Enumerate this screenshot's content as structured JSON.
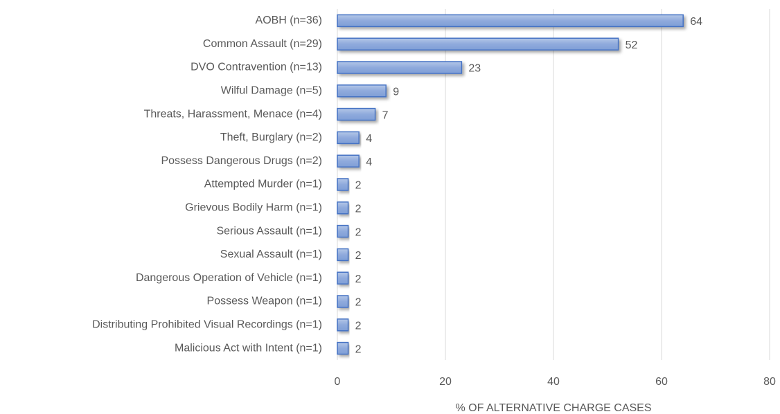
{
  "chart_data": {
    "type": "bar",
    "orientation": "horizontal",
    "x_label": "% OF ALTERNATIVE CHARGE CASES",
    "categories": [
      "AOBH (n=36)",
      "Common Assault (n=29)",
      "DVO Contravention (n=13)",
      "Wilful Damage (n=5)",
      "Threats, Harassment, Menace (n=4)",
      "Theft, Burglary (n=2)",
      "Possess Dangerous Drugs (n=2)",
      "Attempted Murder (n=1)",
      "Grievous Bodily Harm (n=1)",
      "Serious Assault (n=1)",
      "Sexual Assault (n=1)",
      "Dangerous Operation of Vehicle (n=1)",
      "Possess Weapon (n=1)",
      "Distributing Prohibited Visual Recordings (n=1)",
      "Malicious Act with Intent (n=1)"
    ],
    "values": [
      64,
      52,
      23,
      9,
      7,
      4,
      4,
      2,
      2,
      2,
      2,
      2,
      2,
      2,
      2
    ],
    "color": "#8faadc",
    "edge_color": "#4472c4",
    "xlim": [
      0,
      80
    ],
    "xticks": [
      0,
      20,
      40,
      60,
      80
    ],
    "grid": true
  }
}
